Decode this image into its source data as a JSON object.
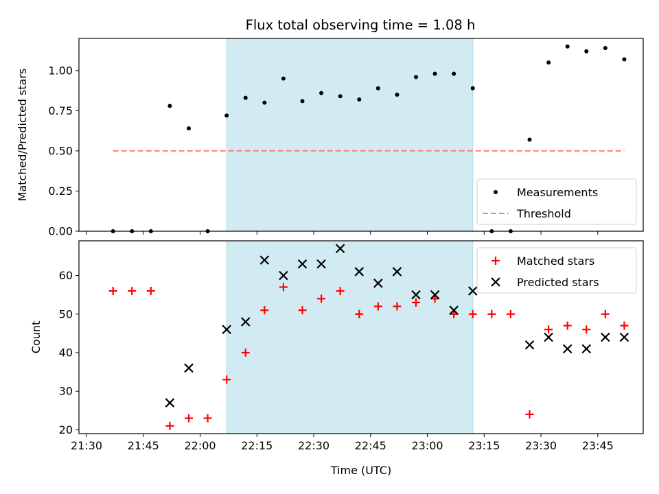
{
  "chart_data": [
    {
      "type": "scatter",
      "title": "Flux total observing time = 1.08 h",
      "ylabel": "Matched/Predicted stars",
      "xlabel": "",
      "xlim": [
        "21:28",
        "23:57"
      ],
      "ylim": [
        0,
        1.2
      ],
      "x_ticks": [
        "21:30",
        "21:45",
        "22:00",
        "22:15",
        "22:30",
        "22:45",
        "23:00",
        "23:15",
        "23:30",
        "23:45"
      ],
      "y_ticks": [
        "0.00",
        "0.25",
        "0.50",
        "0.75",
        "1.00"
      ],
      "shaded_span": {
        "start": "22:07",
        "end": "23:12",
        "color": "#add8e6"
      },
      "legend_position": "lower right",
      "series": [
        {
          "name": "Measurements",
          "kind": "scatter",
          "marker": "dot",
          "color": "#000000",
          "x": [
            "21:37",
            "21:42",
            "21:47",
            "21:52",
            "21:57",
            "22:02",
            "22:07",
            "22:12",
            "22:17",
            "22:22",
            "22:27",
            "22:32",
            "22:37",
            "22:42",
            "22:47",
            "22:52",
            "22:57",
            "23:02",
            "23:07",
            "23:12",
            "23:17",
            "23:22",
            "23:27",
            "23:32",
            "23:37",
            "23:42",
            "23:47",
            "23:52"
          ],
          "y": [
            0,
            0,
            0,
            0.78,
            0.64,
            0,
            0.72,
            0.83,
            0.8,
            0.95,
            0.81,
            0.86,
            0.84,
            0.82,
            0.89,
            0.85,
            0.96,
            0.98,
            0.98,
            0.89,
            0,
            0,
            0.57,
            1.05,
            1.15,
            1.12,
            1.14,
            1.07
          ]
        },
        {
          "name": "Threshold",
          "kind": "line",
          "dash": true,
          "color": "#ff7f7f",
          "x": [
            "21:37",
            "23:52"
          ],
          "y": [
            0.5,
            0.5
          ]
        }
      ]
    },
    {
      "type": "scatter",
      "title": "",
      "ylabel": "Count",
      "xlabel": "Time (UTC)",
      "xlim": [
        "21:28",
        "23:57"
      ],
      "ylim": [
        19,
        69
      ],
      "x_ticks": [
        "21:30",
        "21:45",
        "22:00",
        "22:15",
        "22:30",
        "22:45",
        "23:00",
        "23:15",
        "23:30",
        "23:45"
      ],
      "y_ticks": [
        "20",
        "30",
        "40",
        "50",
        "60"
      ],
      "shaded_span": {
        "start": "22:07",
        "end": "23:12",
        "color": "#add8e6"
      },
      "legend_position": "upper right",
      "series": [
        {
          "name": "Matched stars",
          "kind": "scatter",
          "marker": "plus",
          "color": "#ff0000",
          "x": [
            "21:37",
            "21:42",
            "21:47",
            "21:52",
            "21:57",
            "22:02",
            "22:07",
            "22:12",
            "22:17",
            "22:22",
            "22:27",
            "22:32",
            "22:37",
            "22:42",
            "22:47",
            "22:52",
            "22:57",
            "23:02",
            "23:07",
            "23:12",
            "23:17",
            "23:22",
            "23:27",
            "23:32",
            "23:37",
            "23:42",
            "23:47",
            "23:52"
          ],
          "y": [
            56,
            56,
            56,
            21,
            23,
            23,
            33,
            40,
            51,
            57,
            51,
            54,
            56,
            50,
            52,
            52,
            53,
            54,
            50,
            50,
            50,
            50,
            24,
            46,
            47,
            46,
            50,
            47
          ]
        },
        {
          "name": "Predicted stars",
          "kind": "scatter",
          "marker": "x",
          "color": "#000000",
          "x": [
            "21:52",
            "21:57",
            "22:07",
            "22:12",
            "22:17",
            "22:22",
            "22:27",
            "22:32",
            "22:37",
            "22:42",
            "22:47",
            "22:52",
            "22:57",
            "23:02",
            "23:07",
            "23:12",
            "23:27",
            "23:32",
            "23:37",
            "23:42",
            "23:47",
            "23:52"
          ],
          "y": [
            27,
            36,
            46,
            48,
            64,
            60,
            63,
            63,
            67,
            61,
            58,
            61,
            55,
            55,
            51,
            56,
            42,
            44,
            41,
            41,
            44,
            44
          ]
        }
      ]
    }
  ]
}
